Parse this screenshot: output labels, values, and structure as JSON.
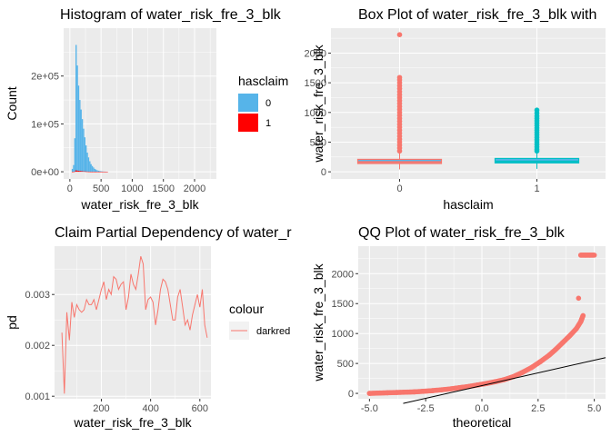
{
  "chart_data": [
    {
      "type": "bar",
      "title": "Histogram of water_risk_fre_3_blk",
      "xlabel": "water_risk_fre_3_blk",
      "ylabel": "Count",
      "xlim": [
        -100,
        2350
      ],
      "ylim": [
        -15000,
        300000
      ],
      "x_ticks": [
        0,
        500,
        1000,
        1500,
        2000
      ],
      "x_tick_labels": [
        "0",
        "500",
        "1000",
        "1500",
        "2000"
      ],
      "y_ticks": [
        0,
        100000,
        200000
      ],
      "y_tick_labels": [
        "0e+00",
        "1e+05",
        "2e+05"
      ],
      "legend": {
        "title": "hasclaim",
        "entries": [
          {
            "label": "0",
            "color": "#56B4E9"
          },
          {
            "label": "1",
            "color": "#FF0000"
          }
        ]
      },
      "bin_width": 20,
      "bins": [
        40,
        60,
        80,
        100,
        120,
        140,
        160,
        180,
        200,
        220,
        240,
        260,
        280,
        300,
        320,
        340,
        360,
        380,
        400,
        420,
        440,
        460,
        480,
        500,
        520,
        540,
        560,
        580,
        600
      ],
      "series": [
        {
          "name": "0",
          "values": [
            6000,
            14000,
            70000,
            265000,
            222000,
            180000,
            150000,
            130000,
            110000,
            90000,
            72000,
            55000,
            40000,
            30000,
            22000,
            16000,
            12000,
            9000,
            6000,
            4500,
            3000,
            2200,
            1600,
            1100,
            800,
            600,
            400,
            300,
            200
          ]
        },
        {
          "name": "1",
          "values": [
            50,
            150,
            800,
            3000,
            2500,
            2000,
            1700,
            1500,
            1200,
            1000,
            800,
            600,
            450,
            300,
            250,
            180,
            130,
            90,
            60,
            40,
            30,
            20,
            15,
            10,
            8,
            5,
            4,
            3,
            2
          ]
        }
      ]
    },
    {
      "type": "box",
      "title": "Box Plot of water_risk_fre_3_blk with",
      "xlabel": "hasclaim",
      "ylabel": "water_risk_fre_3_blk",
      "categories": [
        "0",
        "1"
      ],
      "ylim": [
        -120,
        2420
      ],
      "y_ticks": [
        0,
        500,
        1000,
        1500,
        2000
      ],
      "series": [
        {
          "name": "0",
          "color": "#F8766D",
          "q1": 140,
          "median": 165,
          "q3": 210,
          "whisker_low": 40,
          "whisker_high": 310,
          "outliers": [
            2310,
            1590,
            1550,
            1500,
            1450,
            1400,
            1350,
            1300,
            1250,
            1200,
            1150,
            1100,
            1050,
            1000,
            950,
            900,
            850,
            800,
            750,
            700,
            650,
            600,
            550,
            500,
            450,
            400,
            350
          ]
        },
        {
          "name": "1",
          "color": "#00BFC4",
          "q1": 150,
          "median": 175,
          "q3": 225,
          "whisker_low": 50,
          "whisker_high": 320,
          "outliers": [
            1040,
            990,
            940,
            900,
            860,
            820,
            780,
            740,
            700,
            660,
            620,
            580,
            540,
            500,
            460,
            420,
            380,
            350
          ]
        }
      ]
    },
    {
      "type": "line",
      "title": "Claim Partial Dependency of water_r",
      "xlabel": "water_risk_fre_3_blk",
      "ylabel": "pd",
      "xlim": [
        10,
        645
      ],
      "ylim": [
        0.00095,
        0.00395
      ],
      "x_ticks": [
        200,
        400,
        600
      ],
      "y_ticks": [
        0.001,
        0.002,
        0.003
      ],
      "y_tick_labels": [
        "0.001",
        "0.002",
        "0.003"
      ],
      "legend": {
        "title": "colour",
        "entries": [
          {
            "label": "darkred",
            "color": "#F8766D"
          }
        ]
      },
      "x": [
        40,
        50,
        60,
        70,
        80,
        90,
        100,
        110,
        120,
        130,
        140,
        150,
        160,
        170,
        180,
        190,
        200,
        210,
        220,
        230,
        240,
        250,
        260,
        270,
        280,
        290,
        300,
        310,
        320,
        330,
        340,
        350,
        360,
        370,
        380,
        390,
        400,
        410,
        420,
        430,
        440,
        450,
        460,
        470,
        480,
        490,
        500,
        510,
        520,
        530,
        540,
        550,
        560,
        570,
        580,
        590,
        600,
        610,
        620,
        630
      ],
      "y": [
        0.00225,
        0.00105,
        0.00265,
        0.0021,
        0.00285,
        0.00255,
        0.0028,
        0.0027,
        0.00265,
        0.0027,
        0.0029,
        0.0028,
        0.0028,
        0.0029,
        0.0027,
        0.0029,
        0.0031,
        0.00325,
        0.0029,
        0.0031,
        0.003,
        0.00335,
        0.0033,
        0.0031,
        0.0032,
        0.00325,
        0.0027,
        0.00295,
        0.0034,
        0.0032,
        0.0031,
        0.0034,
        0.00375,
        0.0036,
        0.0027,
        0.0029,
        0.00295,
        0.00285,
        0.0024,
        0.0027,
        0.0031,
        0.0033,
        0.00325,
        0.0031,
        0.0028,
        0.0025,
        0.0025,
        0.00295,
        0.0031,
        0.00275,
        0.0024,
        0.0025,
        0.0023,
        0.0026,
        0.0028,
        0.003,
        0.00275,
        0.0031,
        0.0024,
        0.00215
      ]
    },
    {
      "type": "scatter",
      "title": "QQ Plot of water_risk_fre_3_blk",
      "xlabel": "theoretical",
      "ylabel": "water_risk_fre_3_blk",
      "xlim": [
        -5.5,
        5.5
      ],
      "ylim": [
        -90,
        2460
      ],
      "x_ticks": [
        -5.0,
        -2.5,
        0.0,
        2.5,
        5.0
      ],
      "x_tick_labels": [
        "-5.0",
        "-2.5",
        "0.0",
        "2.5",
        "5.0"
      ],
      "y_ticks": [
        0,
        500,
        1000,
        1500,
        2000
      ],
      "color": "#F8766D",
      "points": [
        [
          -5.0,
          0
        ],
        [
          -4.6,
          5
        ],
        [
          -4.2,
          10
        ],
        [
          -3.8,
          15
        ],
        [
          -3.4,
          20
        ],
        [
          -3.0,
          25
        ],
        [
          -2.6,
          35
        ],
        [
          -2.2,
          45
        ],
        [
          -1.8,
          60
        ],
        [
          -1.4,
          75
        ],
        [
          -1.0,
          95
        ],
        [
          -0.6,
          115
        ],
        [
          -0.2,
          140
        ],
        [
          0.2,
          165
        ],
        [
          0.6,
          195
        ],
        [
          1.0,
          230
        ],
        [
          1.4,
          280
        ],
        [
          1.8,
          350
        ],
        [
          2.2,
          430
        ],
        [
          2.6,
          530
        ],
        [
          3.0,
          640
        ],
        [
          3.3,
          740
        ],
        [
          3.6,
          850
        ],
        [
          3.9,
          960
        ],
        [
          4.2,
          1080
        ],
        [
          4.4,
          1200
        ],
        [
          4.5,
          1300
        ],
        [
          4.3,
          1590
        ],
        [
          4.4,
          2310
        ],
        [
          4.6,
          2310
        ],
        [
          4.8,
          2310
        ],
        [
          5.0,
          2310
        ]
      ],
      "reference_line": {
        "slope": 85,
        "intercept": 130
      }
    }
  ]
}
